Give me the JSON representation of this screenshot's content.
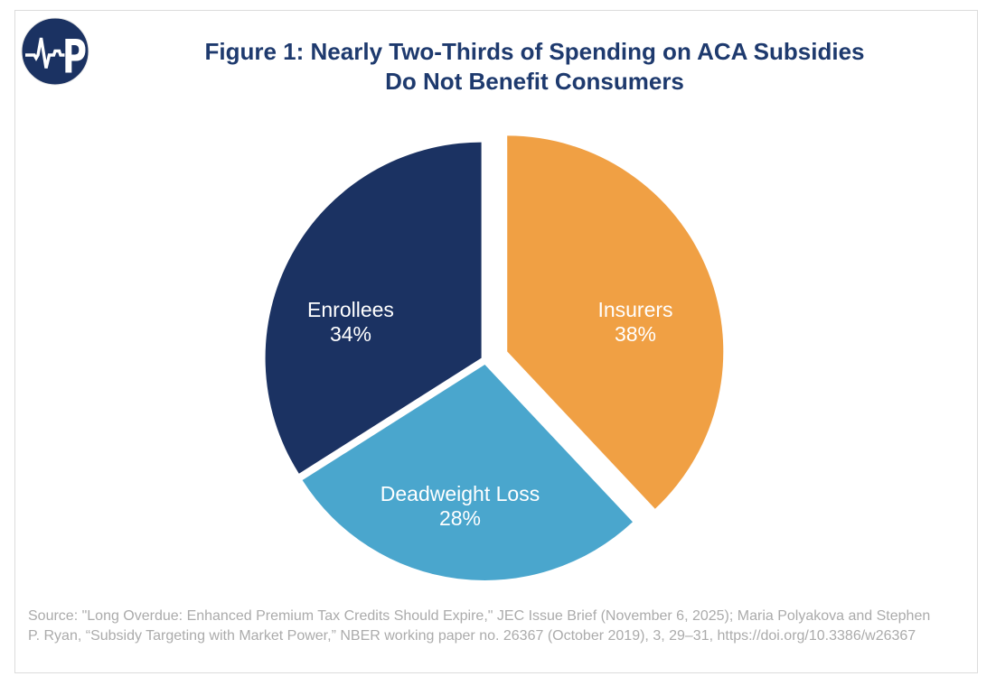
{
  "figure": {
    "title_line1": "Figure 1: Nearly Two-Thirds of Spending on ACA Subsidies",
    "title_line2": "Do Not Benefit Consumers",
    "source_note": "Source: \"Long Overdue: Enhanced Premium Tax Credits Should Expire,\" JEC Issue Brief (November 6, 2025); Maria Polyakova and Stephen P. Ryan, “Subsidy Targeting with Market Power,” NBER working paper no. 26367 (October 2019), 3, 29–31, https://doi.org/10.3386/w26367",
    "logo": {
      "monogram_letter": "P",
      "name": "paragon-pulse-logo"
    }
  },
  "colors": {
    "title_text": "#1e3a6e",
    "navy_slice": "#1b3262",
    "orange_slice": "#f0a044",
    "light_blue_slice": "#4aa6cd",
    "slice_label_text": "#ffffff",
    "source_text": "#ababab",
    "frame_border": "#dcdcdc",
    "background": "#ffffff"
  },
  "chart_data": {
    "type": "pie",
    "title": "Figure 1: Nearly Two-Thirds of Spending on ACA Subsidies Do Not Benefit Consumers",
    "start_angle_deg": 0,
    "direction": "clockwise",
    "value_suffix": "%",
    "labels_inside": true,
    "legend": "none",
    "slices": [
      {
        "label": "Insurers",
        "value": 38,
        "color": "#f0a044",
        "exploded": true
      },
      {
        "label": "Deadweight Loss",
        "value": 28,
        "color": "#4aa6cd",
        "exploded": false
      },
      {
        "label": "Enrollees",
        "value": 34,
        "color": "#1b3262",
        "exploded": false
      }
    ]
  }
}
